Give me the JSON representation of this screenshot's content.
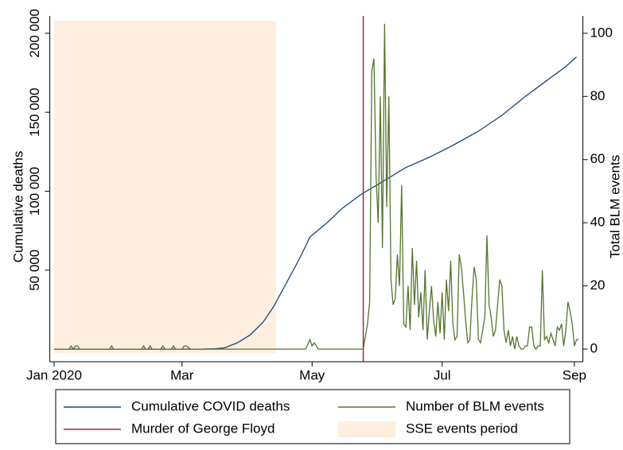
{
  "chart_data": {
    "type": "line",
    "ylabel": "Cumulative deaths",
    "y2label": "Total BLM events",
    "xlim": [
      -2,
      248
    ],
    "xticks": [
      {
        "value": 0,
        "label": "Jan 2020"
      },
      {
        "value": 60,
        "label": "Mar"
      },
      {
        "value": 121,
        "label": "May"
      },
      {
        "value": 182,
        "label": "Jul"
      },
      {
        "value": 244,
        "label": "Sep"
      }
    ],
    "ylim": [
      -8000,
      211000
    ],
    "yticks": [
      {
        "value": 50000,
        "label": "50 000"
      },
      {
        "value": 100000,
        "label": "100 000"
      },
      {
        "value": 150000,
        "label": "150 000"
      },
      {
        "value": 200000,
        "label": "200 000"
      }
    ],
    "y2lim": [
      -4,
      105.5
    ],
    "y2ticks": [
      0,
      20,
      40,
      60,
      80,
      100
    ],
    "legend": "bottom",
    "series": [
      {
        "name": "Cumulative COVID deaths",
        "color": "#1a476f",
        "x": [
          0,
          60,
          69,
          75,
          80,
          86,
          92,
          98,
          103,
          109,
          115,
          120,
          128,
          135,
          144,
          154,
          165,
          176,
          187,
          199,
          210,
          221,
          232,
          240,
          245
        ],
        "values": [
          0,
          0,
          0,
          200,
          800,
          4000,
          9000,
          17000,
          27000,
          42000,
          57000,
          71000,
          80000,
          89000,
          98000,
          106000,
          115000,
          121500,
          129000,
          138000,
          148000,
          160000,
          171000,
          179000,
          185000
        ]
      },
      {
        "name": "Number of BLM events",
        "color": "#55752f",
        "axis": "y2",
        "x": [
          0,
          7,
          8,
          9,
          10,
          11,
          12,
          13,
          26,
          27,
          28,
          41,
          42,
          43,
          44,
          45,
          46,
          50,
          51,
          52,
          55,
          56,
          57,
          60,
          61,
          62,
          64,
          118,
          120,
          121,
          122,
          124,
          144,
          145,
          146,
          147,
          148,
          149,
          150,
          151,
          152,
          153,
          154,
          155,
          156,
          157,
          158,
          159,
          160,
          161,
          162,
          163,
          164,
          165,
          166,
          167,
          168,
          169,
          170,
          171,
          172,
          173,
          174,
          175,
          176,
          177,
          178,
          179,
          180,
          181,
          182,
          183,
          184,
          185,
          186,
          187,
          188,
          189,
          190,
          191,
          192,
          193,
          194,
          195,
          196,
          197,
          198,
          199,
          200,
          201,
          202,
          203,
          204,
          205,
          206,
          207,
          208,
          209,
          210,
          211,
          212,
          213,
          214,
          215,
          216,
          217,
          218,
          219,
          220,
          221,
          222,
          223,
          224,
          225,
          226,
          227,
          228,
          229,
          230,
          231,
          232,
          233,
          234,
          235,
          236,
          237,
          238,
          239,
          240,
          241,
          242,
          243,
          244,
          245,
          246
        ],
        "values": [
          0,
          0,
          1,
          0,
          1,
          1,
          0,
          0,
          0,
          1,
          0,
          0,
          1,
          0,
          0,
          1,
          0,
          0,
          1,
          0,
          0,
          1,
          0,
          0,
          1,
          1,
          0,
          0,
          3,
          1,
          2,
          0,
          0,
          0,
          4,
          8,
          15,
          88,
          92,
          55,
          40,
          80,
          32,
          103,
          45,
          80,
          22,
          14,
          16,
          30,
          20,
          52,
          8,
          7,
          20,
          6,
          32,
          14,
          28,
          10,
          18,
          6,
          25,
          3,
          12,
          20,
          9,
          4,
          15,
          5,
          18,
          3,
          22,
          12,
          28,
          8,
          3,
          4,
          30,
          26,
          18,
          9,
          2,
          3,
          16,
          26,
          22,
          3,
          2,
          6,
          10,
          36,
          14,
          10,
          4,
          6,
          14,
          22,
          20,
          6,
          2,
          6,
          1,
          4,
          0,
          4,
          1,
          0,
          0,
          1,
          1,
          7,
          7,
          1,
          0,
          1,
          1,
          25,
          3,
          4,
          2,
          5,
          3,
          1,
          7,
          6,
          8,
          1,
          6,
          15,
          12,
          8,
          1,
          3,
          3
        ]
      }
    ],
    "vlines": [
      {
        "name": "Murder of George Floyd",
        "color": "#90353b",
        "x": 145
      }
    ],
    "spans": [
      {
        "name": "SSE events period",
        "color": "#fdeee0",
        "x": [
          0,
          104
        ]
      }
    ]
  }
}
